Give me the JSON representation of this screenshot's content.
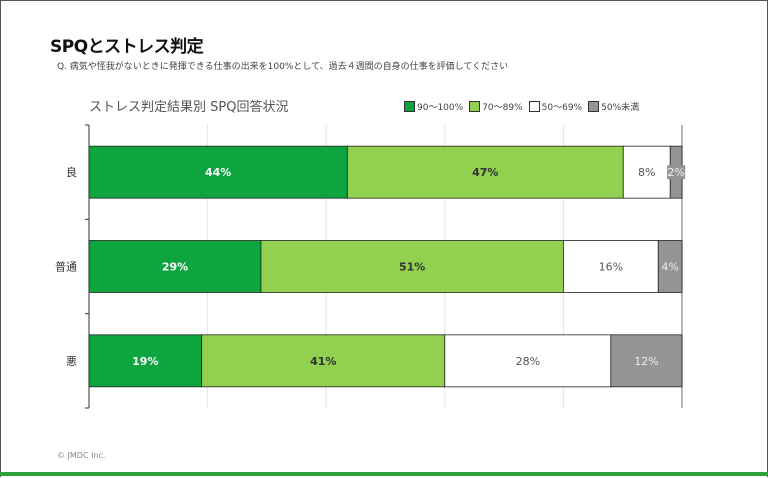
{
  "page": {
    "title": "SPQとストレス判定",
    "question": "Q. 病気や怪我がないときに発揮できる仕事の出来を100%として、過去４週間の自身の仕事を評価してください",
    "copyright": "© JMDC Inc.",
    "accent": "#2e9e3e"
  },
  "chart_data": {
    "type": "bar",
    "orientation": "horizontal-stacked-100",
    "title": "ストレス判定結果別 SPQ回答状況",
    "categories": [
      "良",
      "普通",
      "悪"
    ],
    "series": [
      {
        "name": "90～100%",
        "color": "#0ea53f",
        "label_color": "#ffffff",
        "bold": true,
        "values": [
          44,
          29,
          19
        ]
      },
      {
        "name": "70～89%",
        "color": "#92d050",
        "label_color": "#333333",
        "bold": true,
        "values": [
          47,
          51,
          41
        ]
      },
      {
        "name": "50～69%",
        "color": "#ffffff",
        "label_color": "#555555",
        "bold": false,
        "values": [
          8,
          16,
          28
        ]
      },
      {
        "name": "50%未満",
        "color": "#959595",
        "label_color": "#eeeeee",
        "bold": false,
        "values": [
          2,
          4,
          12
        ]
      }
    ],
    "xlim": [
      0,
      100
    ],
    "grid": true,
    "legend": "top-right"
  }
}
